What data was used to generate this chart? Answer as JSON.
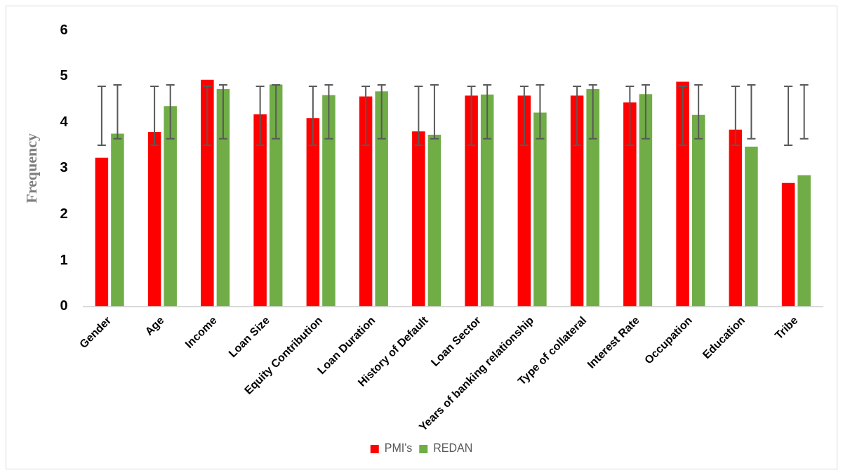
{
  "chart_data": {
    "type": "bar",
    "ylabel": "Frequency",
    "categories": [
      "Gender",
      "Age",
      "Income",
      "Loan Size",
      "Equity Contribution",
      "Loan Duration",
      "History of Default",
      "Loan Sector",
      "Years of banking relationship",
      "Type of collateral",
      "Interest Rate",
      "Occupation",
      "Education",
      "Tribe"
    ],
    "series": [
      {
        "name": "PMI's",
        "color": "#ff0000",
        "values": [
          3.23,
          3.79,
          4.92,
          4.17,
          4.09,
          4.56,
          3.8,
          4.58,
          4.58,
          4.58,
          4.43,
          4.88,
          3.84,
          2.68
        ],
        "errors": [
          [
            3.5,
            4.78
          ],
          [
            3.5,
            4.78
          ],
          [
            3.5,
            4.78
          ],
          [
            3.5,
            4.78
          ],
          [
            3.5,
            4.78
          ],
          [
            3.5,
            4.78
          ],
          [
            3.5,
            4.78
          ],
          [
            3.5,
            4.78
          ],
          [
            3.5,
            4.78
          ],
          [
            3.5,
            4.78
          ],
          [
            3.5,
            4.78
          ],
          [
            3.5,
            4.78
          ],
          [
            3.5,
            4.78
          ],
          [
            3.5,
            4.78
          ]
        ]
      },
      {
        "name": "REDAN",
        "color": "#70ad47",
        "values": [
          3.75,
          4.35,
          4.72,
          4.82,
          4.59,
          4.67,
          3.73,
          4.6,
          4.21,
          4.72,
          4.61,
          4.16,
          3.47,
          2.85
        ],
        "errors": [
          [
            3.64,
            4.81
          ],
          [
            3.64,
            4.81
          ],
          [
            3.64,
            4.81
          ],
          [
            3.64,
            4.81
          ],
          [
            3.64,
            4.81
          ],
          [
            3.64,
            4.81
          ],
          [
            3.64,
            4.81
          ],
          [
            3.64,
            4.81
          ],
          [
            3.64,
            4.81
          ],
          [
            3.64,
            4.81
          ],
          [
            3.64,
            4.81
          ],
          [
            3.64,
            4.81
          ],
          [
            3.64,
            4.81
          ],
          [
            3.64,
            4.81
          ]
        ]
      }
    ],
    "ylim": [
      0,
      6
    ],
    "yticks": [
      0,
      1,
      2,
      3,
      4,
      5,
      6
    ],
    "grid": false,
    "legend": "bottom"
  }
}
